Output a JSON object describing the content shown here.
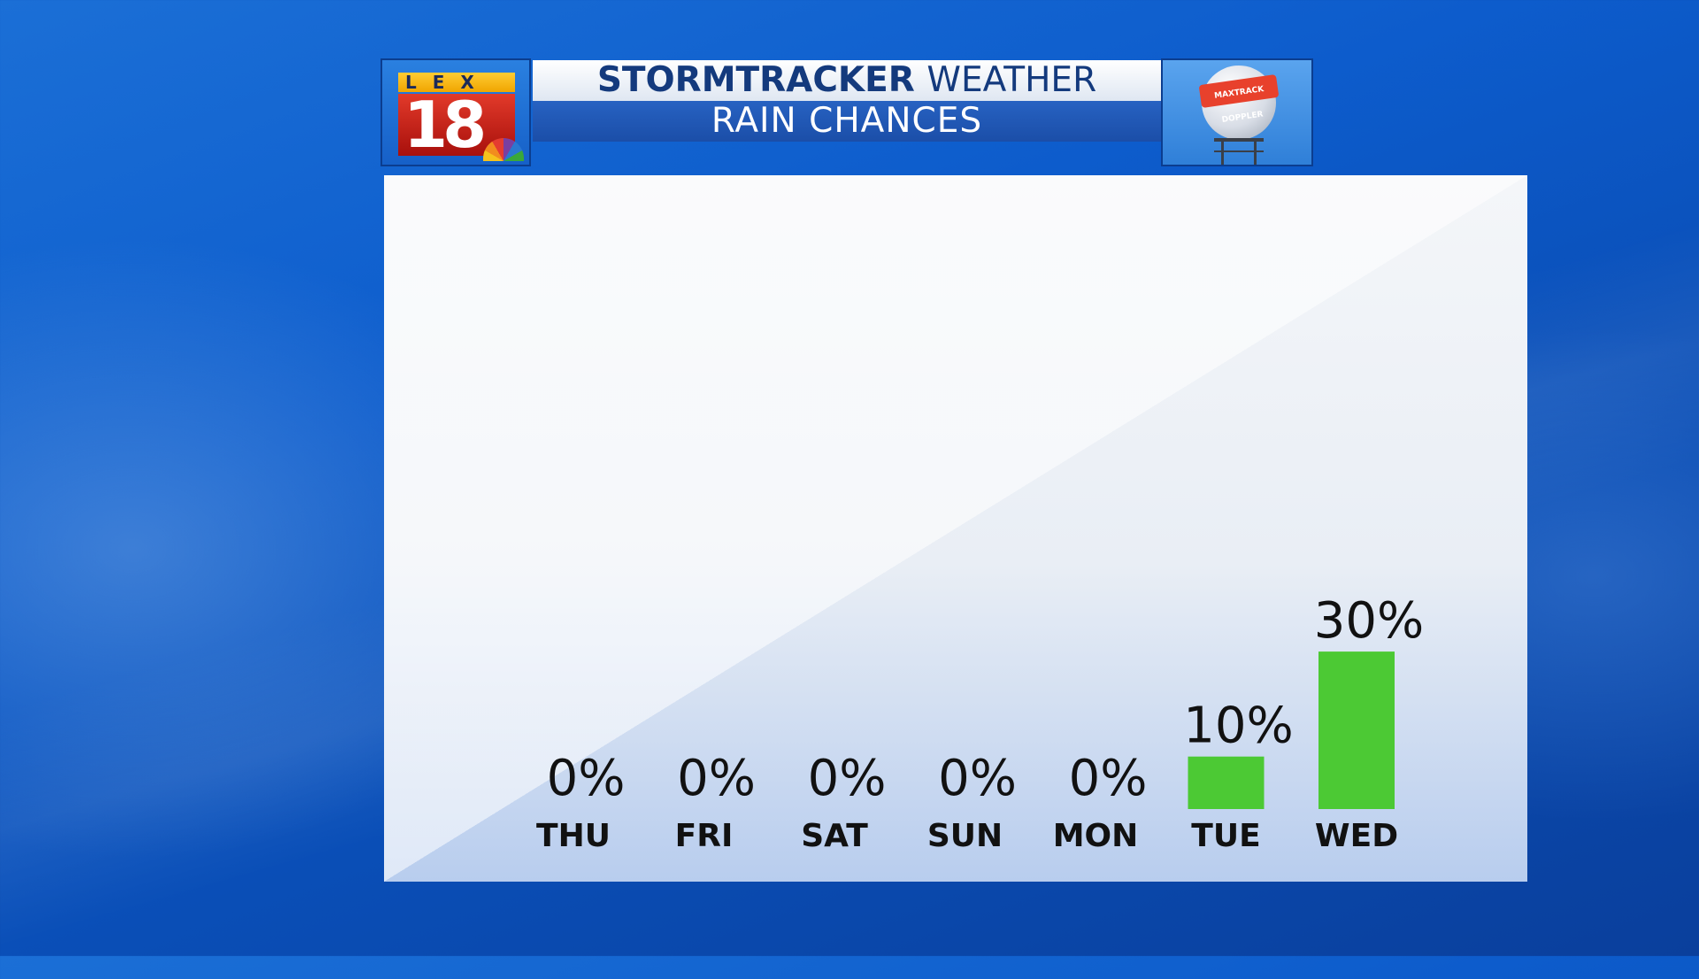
{
  "header": {
    "logo_top": "LEX",
    "logo_number": "18",
    "title_bold": "STORMTRACKER",
    "title_normal": "WEATHER",
    "subtitle": "RAIN CHANCES",
    "radar_badge": "MAXTRACK DOPPLER"
  },
  "colors": {
    "bar": "#4cc934",
    "title_text": "#143a7d",
    "subtitle_bg": "#2762c2"
  },
  "chart_data": {
    "type": "bar",
    "categories": [
      "THU",
      "FRI",
      "SAT",
      "SUN",
      "MON",
      "TUE",
      "WED"
    ],
    "values": [
      0,
      0,
      0,
      0,
      0,
      10,
      30
    ],
    "value_labels": [
      "0%",
      "0%",
      "0%",
      "0%",
      "0%",
      "10%",
      "30%"
    ],
    "title": "RAIN CHANCES",
    "xlabel": "",
    "ylabel": "",
    "ylim": [
      0,
      100
    ],
    "grid": false,
    "legend": "none"
  }
}
